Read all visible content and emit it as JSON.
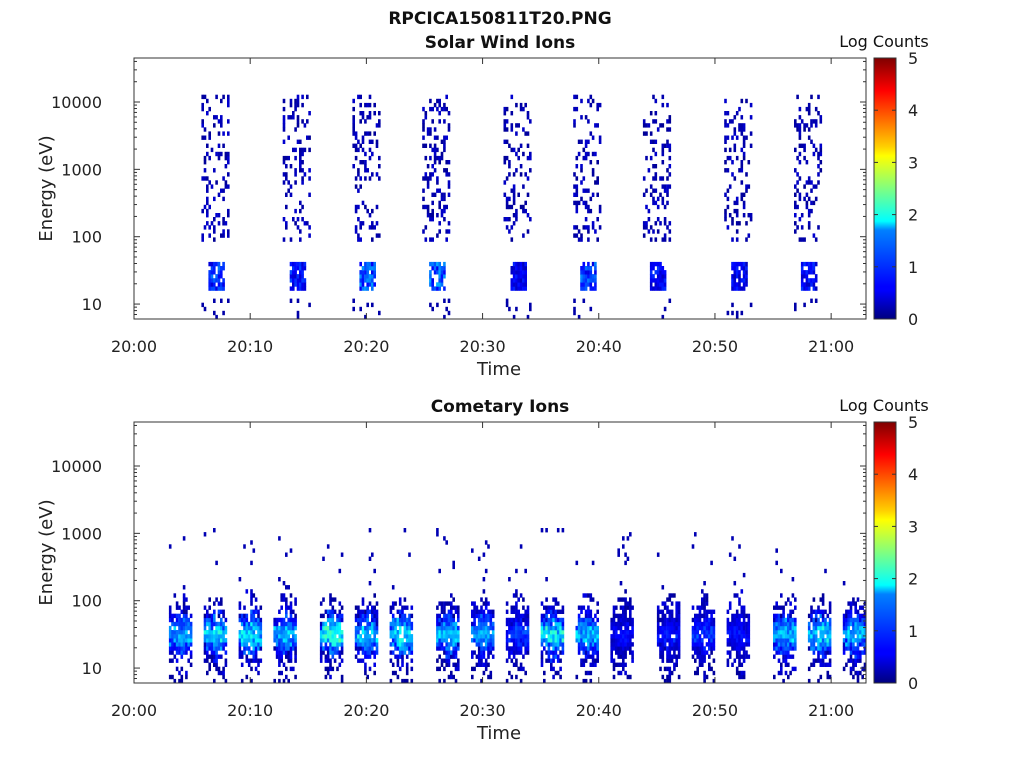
{
  "figure": {
    "title": "RPCICA150811T20.PNG"
  },
  "chart_data": [
    {
      "type": "heatmap",
      "title": "Solar Wind Ions",
      "xlabel": "Time",
      "ylabel": "Energy (eV)",
      "x_ticks": [
        "20:00",
        "20:10",
        "20:20",
        "20:30",
        "20:40",
        "20:50",
        "21:00"
      ],
      "xlim": [
        "20:00",
        "21:03"
      ],
      "y_scale": "log",
      "ylim": [
        6,
        45000
      ],
      "y_ticks": [
        10,
        100,
        1000,
        10000
      ],
      "y_tick_labels": [
        "10",
        "100",
        "1000",
        "10000"
      ],
      "colorbar": {
        "label": "Log Counts",
        "min": 0,
        "max": 5,
        "ticks": [
          "0",
          "1",
          "2",
          "3",
          "4",
          "5"
        ]
      },
      "bursts": [
        {
          "time": "20:07",
          "log_counts_max": 1.2
        },
        {
          "time": "20:14",
          "log_counts_max": 1.0
        },
        {
          "time": "20:20",
          "log_counts_max": 1.4
        },
        {
          "time": "20:26",
          "log_counts_max": 1.5
        },
        {
          "time": "20:33",
          "log_counts_max": 0.8
        },
        {
          "time": "20:39",
          "log_counts_max": 1.3
        },
        {
          "time": "20:45",
          "log_counts_max": 0.9
        },
        {
          "time": "20:52",
          "log_counts_max": 0.8
        },
        {
          "time": "20:58",
          "log_counts_max": 0.9
        }
      ]
    },
    {
      "type": "heatmap",
      "title": "Cometary Ions",
      "xlabel": "Time",
      "ylabel": "Energy (eV)",
      "x_ticks": [
        "20:00",
        "20:10",
        "20:20",
        "20:30",
        "20:40",
        "20:50",
        "21:00"
      ],
      "xlim": [
        "20:00",
        "21:03"
      ],
      "y_scale": "log",
      "ylim": [
        6,
        45000
      ],
      "y_ticks": [
        10,
        100,
        1000,
        10000
      ],
      "y_tick_labels": [
        "10",
        "100",
        "1000",
        "10000"
      ],
      "colorbar": {
        "label": "Log Counts",
        "min": 0,
        "max": 5,
        "ticks": [
          "0",
          "1",
          "2",
          "3",
          "4",
          "5"
        ]
      },
      "bursts": [
        {
          "time": "20:04",
          "log_counts_max": 2.0
        },
        {
          "time": "20:07",
          "log_counts_max": 2.2
        },
        {
          "time": "20:10",
          "log_counts_max": 2.3
        },
        {
          "time": "20:13",
          "log_counts_max": 2.0
        },
        {
          "time": "20:17",
          "log_counts_max": 2.6
        },
        {
          "time": "20:20",
          "log_counts_max": 2.1
        },
        {
          "time": "20:23",
          "log_counts_max": 2.3
        },
        {
          "time": "20:27",
          "log_counts_max": 2.2
        },
        {
          "time": "20:30",
          "log_counts_max": 1.9
        },
        {
          "time": "20:33",
          "log_counts_max": 1.2
        },
        {
          "time": "20:36",
          "log_counts_max": 2.3
        },
        {
          "time": "20:39",
          "log_counts_max": 2.0
        },
        {
          "time": "20:42",
          "log_counts_max": 0.8
        },
        {
          "time": "20:46",
          "log_counts_max": 1.0
        },
        {
          "time": "20:49",
          "log_counts_max": 1.2
        },
        {
          "time": "20:52",
          "log_counts_max": 0.9
        },
        {
          "time": "20:56",
          "log_counts_max": 2.0
        },
        {
          "time": "20:59",
          "log_counts_max": 2.2
        },
        {
          "time": "21:02",
          "log_counts_max": 2.0
        }
      ]
    }
  ]
}
